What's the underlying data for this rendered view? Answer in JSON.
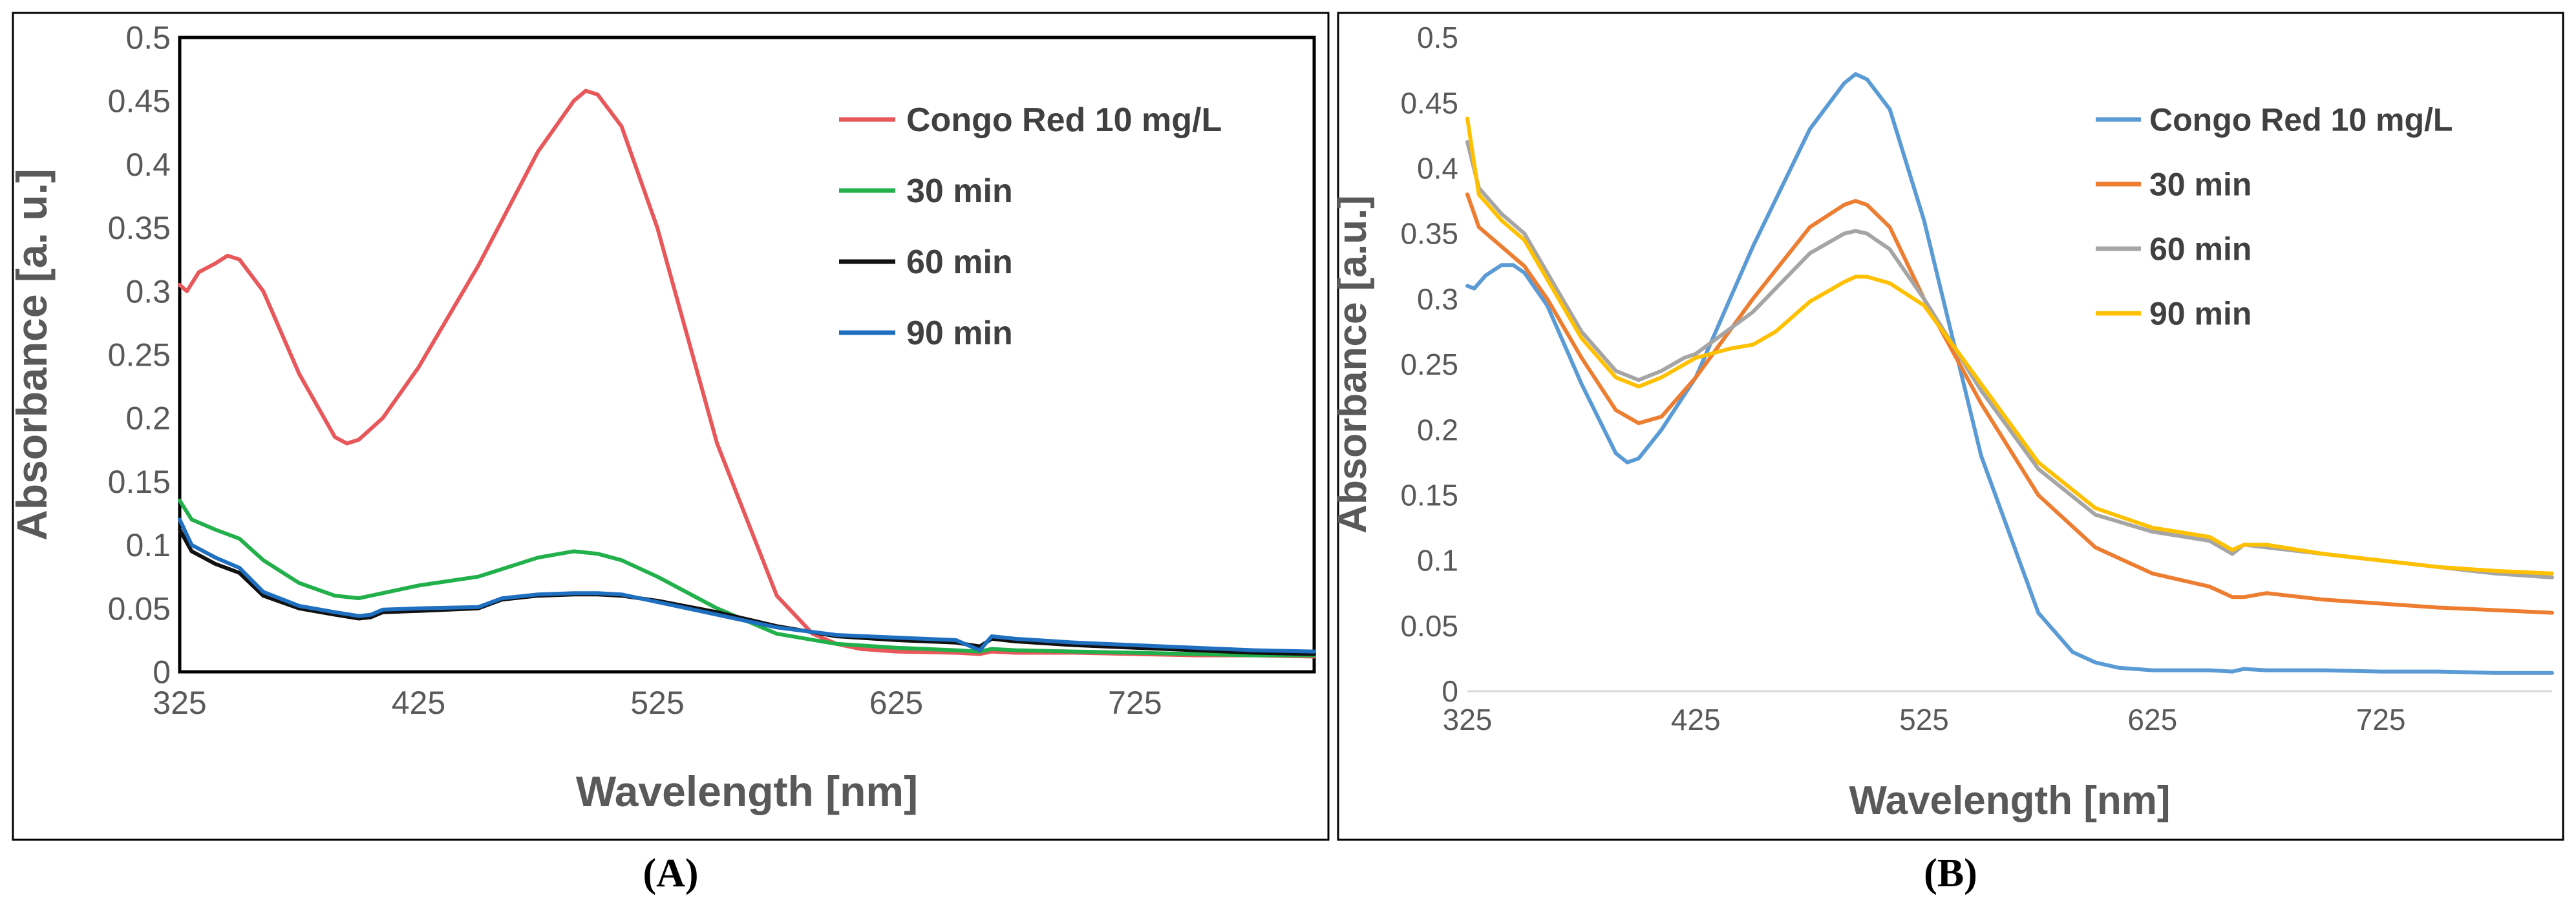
{
  "chart_data": [
    {
      "type": "line",
      "panel_label": "(A)",
      "xlabel": "Wavelength [nm]",
      "ylabel": "Absorbance [a. u.]",
      "xlim": [
        325,
        800
      ],
      "ylim": [
        0,
        0.5
      ],
      "x_ticks": [
        325,
        425,
        525,
        625,
        725
      ],
      "y_ticks": [
        "0",
        "0.05",
        "0.1",
        "0.15",
        "0.2",
        "0.25",
        "0.3",
        "0.35",
        "0.4",
        "0.45",
        "0.5"
      ],
      "grid": false,
      "legend_position": "top-right",
      "series": [
        {
          "name": "Congo Red 10 mg/L",
          "color": "#e8575a",
          "x": [
            325,
            328,
            333,
            340,
            345,
            350,
            360,
            375,
            390,
            395,
            400,
            410,
            425,
            450,
            475,
            490,
            495,
            500,
            510,
            525,
            550,
            575,
            590,
            600,
            610,
            625,
            650,
            660,
            665,
            675,
            700,
            725,
            750,
            775,
            800
          ],
          "y": [
            0.305,
            0.3,
            0.315,
            0.322,
            0.328,
            0.325,
            0.3,
            0.235,
            0.185,
            0.18,
            0.183,
            0.2,
            0.24,
            0.32,
            0.41,
            0.45,
            0.458,
            0.455,
            0.43,
            0.35,
            0.18,
            0.06,
            0.03,
            0.022,
            0.018,
            0.016,
            0.015,
            0.014,
            0.016,
            0.015,
            0.015,
            0.014,
            0.013,
            0.013,
            0.012
          ]
        },
        {
          "name": "30 min",
          "color": "#22b04b",
          "x": [
            325,
            330,
            340,
            350,
            360,
            375,
            390,
            400,
            410,
            425,
            450,
            475,
            490,
            500,
            510,
            525,
            550,
            575,
            600,
            625,
            650,
            660,
            665,
            675,
            700,
            725,
            750,
            775,
            800
          ],
          "y": [
            0.135,
            0.12,
            0.112,
            0.105,
            0.088,
            0.07,
            0.06,
            0.058,
            0.062,
            0.068,
            0.075,
            0.09,
            0.095,
            0.093,
            0.088,
            0.075,
            0.05,
            0.03,
            0.022,
            0.019,
            0.017,
            0.016,
            0.018,
            0.017,
            0.016,
            0.015,
            0.014,
            0.013,
            0.013
          ]
        },
        {
          "name": "60 min",
          "color": "#111111",
          "x": [
            325,
            330,
            340,
            350,
            360,
            375,
            390,
            400,
            405,
            410,
            425,
            450,
            460,
            475,
            490,
            500,
            510,
            525,
            550,
            575,
            600,
            625,
            650,
            660,
            665,
            675,
            700,
            725,
            750,
            775,
            800
          ],
          "y": [
            0.112,
            0.095,
            0.085,
            0.078,
            0.06,
            0.05,
            0.045,
            0.042,
            0.043,
            0.047,
            0.048,
            0.05,
            0.057,
            0.06,
            0.061,
            0.061,
            0.06,
            0.056,
            0.047,
            0.036,
            0.028,
            0.025,
            0.023,
            0.02,
            0.026,
            0.024,
            0.021,
            0.019,
            0.017,
            0.015,
            0.014
          ]
        },
        {
          "name": "90 min",
          "color": "#1f6fc0",
          "x": [
            325,
            330,
            340,
            350,
            360,
            375,
            390,
            400,
            405,
            410,
            425,
            450,
            460,
            475,
            490,
            500,
            510,
            525,
            550,
            575,
            600,
            625,
            650,
            660,
            665,
            675,
            700,
            725,
            750,
            775,
            800
          ],
          "y": [
            0.12,
            0.1,
            0.09,
            0.082,
            0.063,
            0.052,
            0.047,
            0.044,
            0.045,
            0.049,
            0.05,
            0.051,
            0.058,
            0.061,
            0.062,
            0.062,
            0.061,
            0.055,
            0.045,
            0.035,
            0.029,
            0.027,
            0.025,
            0.017,
            0.028,
            0.026,
            0.023,
            0.021,
            0.019,
            0.017,
            0.016
          ]
        }
      ]
    },
    {
      "type": "line",
      "panel_label": "(B)",
      "xlabel": "Wavelength [nm]",
      "ylabel": "Absorbance  [a.u.]",
      "xlim": [
        325,
        800
      ],
      "ylim": [
        0,
        0.5
      ],
      "x_ticks": [
        325,
        425,
        525,
        625,
        725
      ],
      "y_ticks": [
        "0",
        "0.05",
        "0.1",
        "0.15",
        "0.2",
        "0.25",
        "0.3",
        "0.35",
        "0.4",
        "0.45",
        "0.5"
      ],
      "grid": false,
      "legend_position": "top-right",
      "series": [
        {
          "name": "Congo Red 10 mg/L",
          "color": "#5b9bd5",
          "x": [
            325,
            328,
            333,
            340,
            345,
            350,
            360,
            375,
            390,
            395,
            400,
            410,
            425,
            450,
            475,
            490,
            495,
            500,
            510,
            525,
            550,
            575,
            590,
            600,
            610,
            625,
            650,
            660,
            665,
            675,
            700,
            725,
            750,
            775,
            800
          ],
          "y": [
            0.31,
            0.308,
            0.318,
            0.326,
            0.326,
            0.32,
            0.295,
            0.235,
            0.182,
            0.175,
            0.178,
            0.2,
            0.24,
            0.34,
            0.43,
            0.465,
            0.472,
            0.468,
            0.445,
            0.36,
            0.18,
            0.06,
            0.03,
            0.022,
            0.018,
            0.016,
            0.016,
            0.015,
            0.017,
            0.016,
            0.016,
            0.015,
            0.015,
            0.014,
            0.014
          ]
        },
        {
          "name": "30 min",
          "color": "#ed7d31",
          "x": [
            325,
            330,
            340,
            350,
            360,
            375,
            390,
            400,
            410,
            425,
            450,
            475,
            490,
            495,
            500,
            510,
            525,
            550,
            575,
            600,
            625,
            650,
            660,
            665,
            675,
            700,
            725,
            750,
            775,
            800
          ],
          "y": [
            0.38,
            0.355,
            0.34,
            0.325,
            0.3,
            0.255,
            0.215,
            0.205,
            0.21,
            0.24,
            0.3,
            0.355,
            0.372,
            0.375,
            0.372,
            0.355,
            0.3,
            0.22,
            0.15,
            0.11,
            0.09,
            0.08,
            0.072,
            0.072,
            0.075,
            0.07,
            0.067,
            0.064,
            0.062,
            0.06
          ]
        },
        {
          "name": "60 min",
          "color": "#a5a5a5",
          "x": [
            325,
            330,
            340,
            350,
            360,
            375,
            390,
            400,
            410,
            420,
            425,
            450,
            475,
            490,
            495,
            500,
            510,
            525,
            550,
            575,
            600,
            625,
            650,
            660,
            665,
            675,
            700,
            725,
            750,
            775,
            800
          ],
          "y": [
            0.42,
            0.385,
            0.365,
            0.35,
            0.32,
            0.275,
            0.245,
            0.238,
            0.245,
            0.255,
            0.258,
            0.29,
            0.335,
            0.35,
            0.352,
            0.35,
            0.338,
            0.3,
            0.23,
            0.17,
            0.135,
            0.122,
            0.115,
            0.105,
            0.112,
            0.11,
            0.105,
            0.1,
            0.095,
            0.09,
            0.087
          ]
        },
        {
          "name": "90 min",
          "color": "#ffc000",
          "x": [
            325,
            330,
            340,
            350,
            360,
            375,
            390,
            400,
            410,
            425,
            440,
            450,
            460,
            475,
            490,
            495,
            500,
            510,
            525,
            550,
            575,
            600,
            625,
            650,
            660,
            665,
            675,
            700,
            725,
            750,
            775,
            800
          ],
          "y": [
            0.438,
            0.38,
            0.36,
            0.345,
            0.315,
            0.27,
            0.24,
            0.233,
            0.24,
            0.255,
            0.262,
            0.265,
            0.275,
            0.298,
            0.313,
            0.317,
            0.317,
            0.312,
            0.295,
            0.235,
            0.175,
            0.14,
            0.125,
            0.118,
            0.108,
            0.112,
            0.112,
            0.105,
            0.1,
            0.095,
            0.092,
            0.09
          ]
        }
      ]
    }
  ]
}
